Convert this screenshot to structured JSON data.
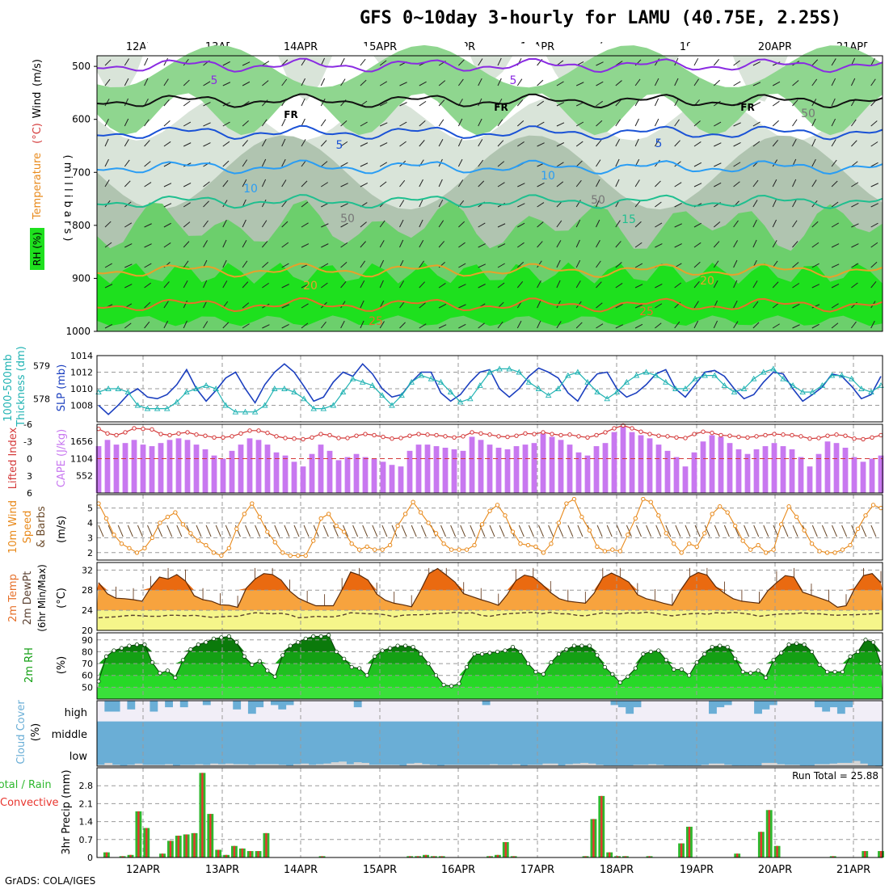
{
  "title": "GFS 0~10day 3-hourly for LAMU (40.75E, 2.25S)",
  "credit": "GrADS: COLA/IGES",
  "dates": [
    "12APR",
    "13APR",
    "14APR",
    "15APR",
    "16APR",
    "17APR",
    "18APR",
    "19APR",
    "20APR",
    "21APR"
  ],
  "colors": {
    "grid": "#9a9a9a",
    "rh_light": "#d9e4d9",
    "rh_mid": "#b0c4b0",
    "rh_green": "#6ccf6c",
    "rh_bright": "#1ee01e",
    "purple": "#8a2be2",
    "cloud_blue": "#6aaed6",
    "cloud_gray": "#d4d4d4",
    "cloud_bg": "#f1eef7",
    "precip_green": "#2eb82e",
    "precip_red": "#e8352e",
    "orange": "#e8891a",
    "cape": "#c878f0",
    "li_red": "#d43a3a"
  },
  "chart_data": [
    {
      "type": "heatmap",
      "name": "upper-air",
      "ylabel_parts": [
        "RH (%)",
        "Temperature",
        "(°C)",
        "Wind",
        "(m/s)"
      ],
      "ylabel_side": "( m i l l i b a r s )",
      "yticks": [
        500,
        600,
        700,
        800,
        900,
        1000
      ],
      "contour_labels": [
        "5",
        "5",
        "FR",
        "FR",
        "FR",
        "5",
        "5",
        "10",
        "10",
        "15",
        "20",
        "20",
        "25",
        "25",
        "50",
        "50",
        "50"
      ]
    },
    {
      "type": "line",
      "name": "thickness-slp",
      "ylabel_left": "1000-500mb Thickness (dm)",
      "ylabel_right": "SLP (mb)",
      "yticks_left": [
        578,
        579
      ],
      "yticks_right": [
        1008,
        1010,
        1012,
        1014
      ],
      "ylim_right": [
        1006,
        1014
      ],
      "slp": [
        1008,
        1006.9,
        1008,
        1009.3,
        1010,
        1009,
        1008.8,
        1009.3,
        1010.5,
        1012.3,
        1010,
        1008.5,
        1009.8,
        1011.3,
        1012,
        1010,
        1008.3,
        1010.5,
        1012,
        1013,
        1012,
        1010.3,
        1008.5,
        1009,
        1010.8,
        1012,
        1011.5,
        1013,
        1011.8,
        1010,
        1009,
        1009.3,
        1010.8,
        1012,
        1012,
        1009.5,
        1008.5,
        1009.3,
        1010.8,
        1012,
        1012.3,
        1010,
        1009,
        1010,
        1011.5,
        1012.5,
        1012,
        1011.3,
        1009.5,
        1008.5,
        1010.5,
        1011.8,
        1012,
        1010,
        1009,
        1009.5,
        1010.5,
        1011.8,
        1012.3,
        1010,
        1009,
        1010.5,
        1012,
        1012.2,
        1011.5,
        1010,
        1008.8,
        1009.3,
        1010.8,
        1012,
        1011.8,
        1010,
        1008.5,
        1009.3,
        1010.2,
        1011.8,
        1011.5,
        1010.3,
        1008.8,
        1009.3,
        1011.5
      ],
      "thickness": [
        578.2,
        578.3,
        578.3,
        578.2,
        577.8,
        577.7,
        577.7,
        577.7,
        577.9,
        578.2,
        578.3,
        578.4,
        578.3,
        577.8,
        577.6,
        577.6,
        577.6,
        577.8,
        578.3,
        578.3,
        578.2,
        578.0,
        577.7,
        577.7,
        577.8,
        578.2,
        578.6,
        578.5,
        578.4,
        578.1,
        577.8,
        578.1,
        578.5,
        578.7,
        578.6,
        578.5,
        578.2,
        577.9,
        578.0,
        578.4,
        578.8,
        578.9,
        578.9,
        578.8,
        578.5,
        578.3,
        578.1,
        578.3,
        578.7,
        578.8,
        578.5,
        578.2,
        578.0,
        578.2,
        578.5,
        578.7,
        578.8,
        578.7,
        578.5,
        578.3,
        578.3,
        578.6,
        578.7,
        578.7,
        578.4,
        578.2,
        578.3,
        578.6,
        578.8,
        578.9,
        578.6,
        578.4,
        578.2,
        578.2,
        578.4,
        578.7,
        578.7,
        578.6,
        578.3,
        578.2,
        578.4
      ]
    },
    {
      "type": "bar",
      "name": "cape-li",
      "ylabel_left": "Lifted Index",
      "ylabel_right": "CAPE (J/kg)",
      "yticks_left": [
        "-6",
        "-3",
        "0",
        "3",
        "6"
      ],
      "yticks_right": [
        552,
        1104,
        1656
      ],
      "ylim_cape": [
        0,
        2200
      ],
      "cape": [
        1500,
        1700,
        1550,
        1600,
        1700,
        1550,
        1500,
        1600,
        1700,
        1750,
        1700,
        1550,
        1400,
        1200,
        1100,
        1350,
        1550,
        1750,
        1700,
        1550,
        1300,
        1200,
        1000,
        850,
        1250,
        1550,
        1350,
        1050,
        1150,
        1250,
        1150,
        1100,
        1000,
        900,
        850,
        1350,
        1550,
        1550,
        1500,
        1450,
        1400,
        1350,
        1800,
        1700,
        1550,
        1450,
        1400,
        1500,
        1550,
        1600,
        1900,
        1800,
        1700,
        1550,
        1300,
        1200,
        1500,
        1600,
        1950,
        2150,
        1950,
        1850,
        1750,
        1550,
        1350,
        1150,
        850,
        1300,
        1650,
        1850,
        1800,
        1600,
        1400,
        1250,
        1400,
        1500,
        1600,
        1500,
        1400,
        1150,
        850,
        1250,
        1650,
        1600,
        1450,
        1150,
        1000,
        1100,
        1200
      ],
      "lifted_index": [
        -5.2,
        -4.4,
        -4.1,
        -4.6,
        -5.3,
        -5.2,
        -5.1,
        -4.3,
        -4.1,
        -4.4,
        -4.6,
        -4.2,
        -4,
        -3.7,
        -3.7,
        -3.9,
        -4.4,
        -4.9,
        -4.9,
        -4.5,
        -3.9,
        -3.6,
        -3.5,
        -3.4,
        -3.7,
        -4.3,
        -4.1,
        -3.6,
        -3.6,
        -4,
        -4.3,
        -4.1,
        -3.8,
        -3.5,
        -3.6,
        -4,
        -4.3,
        -4.2,
        -4.1,
        -3.9,
        -3.7,
        -3.9,
        -4.6,
        -4.4,
        -4.2,
        -3.9,
        -3.8,
        -4,
        -4.4,
        -4.3,
        -4.6,
        -4.3,
        -4.1,
        -4.2,
        -3.9,
        -3.7,
        -4.1,
        -4.6,
        -5.3,
        -5.8,
        -5.3,
        -4.7,
        -4.3,
        -4.0,
        -3.9,
        -3.7,
        -3.6,
        -4.3,
        -4.7,
        -4.5,
        -4.1,
        -4,
        -3.8,
        -3.7,
        -3.9,
        -4.1,
        -4.3,
        -4.2,
        -4.1,
        -3.9,
        -3.5,
        -3.6,
        -4,
        -4.2,
        -4,
        -3.5,
        -3.4,
        -3.7,
        -4.1
      ]
    },
    {
      "type": "line",
      "name": "wind10m",
      "ylabel": "10m Wind Speed & Barbs (m/s)",
      "yticks": [
        2,
        3,
        4,
        5
      ],
      "ylim": [
        1.5,
        5.9
      ],
      "speed": [
        5.3,
        4.3,
        3.2,
        2.6,
        2.3,
        2.0,
        2.3,
        3.0,
        4.0,
        4.4,
        4.7,
        3.9,
        3.3,
        2.8,
        2.5,
        2.0,
        1.8,
        2.3,
        3.6,
        4.6,
        5.3,
        4.4,
        3.4,
        2.7,
        2.0,
        1.8,
        1.8,
        1.8,
        2.8,
        4.3,
        4.6,
        3.8,
        3.4,
        2.6,
        2.2,
        2.4,
        2.2,
        2.2,
        2.5,
        3.8,
        4.6,
        5.4,
        4.7,
        4.0,
        3.3,
        2.6,
        2.2,
        2.2,
        2.2,
        2.5,
        3.9,
        4.8,
        5.2,
        4.5,
        3.4,
        2.6,
        2.5,
        2.4,
        2.0,
        2.6,
        4.0,
        5.3,
        5.6,
        4.4,
        3.5,
        2.4,
        2.1,
        2.2,
        2.1,
        3.2,
        4.3,
        5.6,
        5.4,
        4.5,
        3.3,
        2.6,
        2.0,
        2.6,
        2.4,
        3.3,
        4.6,
        5.1,
        4.7,
        3.8,
        2.8,
        2.2,
        2.5,
        2.0,
        2.2,
        3.9,
        5.1,
        4.4,
        3.5,
        2.6,
        2.1,
        2.0,
        2.0,
        2.2,
        2.5,
        3.6,
        4.5,
        5.2,
        5.0
      ]
    },
    {
      "type": "area",
      "name": "temp-dewpt",
      "ylabel": "2m Temp 2m DewPt (6hr Min/Max) (°C)",
      "yticks": [
        20,
        24,
        28,
        32
      ],
      "ylim": [
        20,
        33.5
      ],
      "temp": [
        29.5,
        27.3,
        26.4,
        26.3,
        26.1,
        25.8,
        28.5,
        30.6,
        30.2,
        31.1,
        29.8,
        26.9,
        26.1,
        25.8,
        25.1,
        25.0,
        24.6,
        28.4,
        30.2,
        31.3,
        31.1,
        30.0,
        27.8,
        26.4,
        25.6,
        24.9,
        24.9,
        24.9,
        28.1,
        31.6,
        31.0,
        30.0,
        27.2,
        26.0,
        25.4,
        25.1,
        24.7,
        27.8,
        31.3,
        32.3,
        31.0,
        29.6,
        27.3,
        26.7,
        26.1,
        25.6,
        25.0,
        27.1,
        29.9,
        31.0,
        30.6,
        29.2,
        27.5,
        26.3,
        25.8,
        25.6,
        25.4,
        27.4,
        30.5,
        31.4,
        30.6,
        29.6,
        27.1,
        26.3,
        25.9,
        25.4,
        25.0,
        28.1,
        30.6,
        31.5,
        31.0,
        28.7,
        27.4,
        26.3,
        25.8,
        25.6,
        25.4,
        27.9,
        29.5,
        30.9,
        30.6,
        27.6,
        27.0,
        26.4,
        25.8,
        24.6,
        24.9,
        28.4,
        30.9,
        31.3,
        29.5
      ],
      "tmax": [
        null,
        null,
        null,
        null,
        null,
        null,
        null,
        null,
        null,
        31.3,
        null,
        null,
        null,
        null,
        null,
        null,
        null,
        null,
        31.0,
        null,
        null,
        null,
        null,
        null,
        null,
        null,
        null,
        null,
        30.9,
        null,
        null,
        null,
        null,
        null,
        null,
        null,
        null,
        null,
        31.2,
        null,
        null,
        null,
        null,
        null,
        null,
        null,
        null,
        null,
        31.5,
        null,
        null,
        null,
        null,
        null,
        null,
        null,
        null,
        null,
        31.0,
        null,
        null,
        null,
        null,
        null,
        null,
        null,
        null,
        null,
        31.5,
        null,
        null,
        null,
        null,
        null,
        null,
        null,
        null,
        null,
        30.9,
        null,
        null,
        null,
        null,
        null,
        null,
        null,
        null,
        null,
        31.3,
        null,
        null
      ],
      "dewpt": [
        22.5,
        22.6,
        22.7,
        22.9,
        23.0,
        22.9,
        22.8,
        22.8,
        23.0,
        23.0,
        22.9,
        23.0,
        22.8,
        22.6,
        22.7,
        22.8,
        22.8,
        23.2,
        23.5,
        23.4,
        23.3,
        23.4,
        23.1,
        22.5,
        22.6,
        22.8,
        22.7,
        22.7,
        23.0,
        23.5,
        23.4,
        23.3,
        23.3,
        23.1,
        22.7,
        23.0,
        23.1,
        23.1,
        23.2,
        23.4,
        23.4,
        23.6,
        23.4,
        23.5,
        23.0,
        22.8,
        23.1,
        23.3,
        23.4,
        23.5,
        23.6,
        23.3,
        23.6,
        23.3,
        23.3,
        23.0,
        22.9,
        23.2,
        23.5,
        23.3,
        23.3,
        23.5,
        23.4,
        23.6,
        23.4,
        23.1,
        22.9,
        23.1,
        23.3,
        23.4,
        23.2,
        23.5,
        23.4,
        23.6,
        23.4,
        23.2,
        22.8,
        23.0,
        23.2,
        23.3,
        23.3,
        23.5,
        23.3,
        23.3,
        23.1,
        23.0,
        23.1,
        23.1,
        23.2,
        23.3,
        23.4
      ]
    },
    {
      "type": "area",
      "name": "rh2m",
      "ylabel": "2m RH (%)",
      "yticks": [
        50,
        60,
        70,
        80,
        90
      ],
      "ylim": [
        40,
        96
      ],
      "rh": [
        55,
        76,
        81,
        83,
        85,
        86,
        86,
        71,
        62,
        64,
        58,
        73,
        82,
        86,
        88,
        91,
        92,
        93,
        88,
        76,
        69,
        72,
        64,
        59,
        77,
        85,
        88,
        91,
        93,
        93,
        94,
        80,
        74,
        67,
        66,
        60,
        76,
        81,
        83,
        85,
        85,
        84,
        78,
        70,
        60,
        52,
        51,
        53,
        67,
        78,
        78,
        79,
        80,
        81,
        84,
        80,
        70,
        63,
        61,
        71,
        78,
        82,
        85,
        85,
        85,
        77,
        67,
        61,
        54,
        59,
        66,
        78,
        80,
        81,
        73,
        65,
        65,
        60,
        71,
        78,
        84,
        85,
        84,
        74,
        63,
        62,
        64,
        58,
        73,
        79,
        86,
        87,
        86,
        80,
        69,
        63,
        63,
        63,
        76,
        80,
        90,
        88,
        70
      ]
    },
    {
      "type": "bar",
      "name": "cloud-cover",
      "ylabel": "Cloud Cover (%)",
      "levels": [
        "high",
        "middle",
        "low"
      ],
      "high": [
        0,
        50,
        50,
        0,
        40,
        0,
        0,
        50,
        0,
        30,
        0,
        30,
        0,
        0,
        20,
        0,
        0,
        0,
        40,
        0,
        60,
        30,
        0,
        20,
        40,
        20,
        0,
        0,
        0,
        0,
        0,
        0,
        0,
        0,
        30,
        0,
        0,
        0,
        0,
        0,
        0,
        0,
        0,
        0,
        0,
        0,
        0,
        0,
        0,
        0,
        0,
        20,
        0,
        0,
        0,
        0,
        0,
        0,
        0,
        0,
        0,
        0,
        0,
        0,
        0,
        0,
        0,
        0,
        20,
        30,
        60,
        30,
        0,
        0,
        0,
        0,
        0,
        0,
        0,
        0,
        0,
        60,
        30,
        20,
        0,
        0,
        0,
        60,
        40,
        20,
        0,
        0,
        0,
        0,
        0,
        30,
        50,
        30,
        60,
        30,
        0,
        0,
        0,
        0,
        0,
        0
      ],
      "middle": [
        100,
        100,
        100,
        100,
        100,
        100,
        100,
        100,
        100,
        100,
        100,
        100,
        100,
        100,
        100,
        100,
        100,
        100,
        100,
        100,
        100,
        100,
        100,
        100,
        100,
        100,
        100,
        100,
        100,
        100,
        100,
        100,
        100,
        100,
        100,
        100,
        100,
        100,
        100,
        100,
        100,
        100,
        100,
        100,
        100,
        100,
        100,
        100,
        100,
        100,
        100,
        100,
        100,
        100,
        100,
        100,
        100,
        100,
        100,
        100,
        100,
        100,
        100,
        100,
        100,
        100,
        100,
        100,
        100,
        100,
        100,
        100,
        100,
        100,
        100,
        100,
        100,
        100,
        100,
        100,
        100,
        100,
        100,
        100,
        100,
        100,
        100,
        100,
        100,
        100,
        100,
        100,
        100,
        100,
        100,
        100,
        100,
        100,
        100,
        100,
        100,
        100,
        100,
        100
      ],
      "low": [
        10,
        25,
        10,
        5,
        10,
        20,
        10,
        10,
        10,
        15,
        5,
        10,
        10,
        15,
        10,
        20,
        15,
        20,
        15,
        15,
        10,
        15,
        15,
        15,
        10,
        5,
        15,
        20,
        10,
        15,
        20,
        30,
        35,
        15,
        30,
        25,
        10,
        10,
        10,
        10,
        5,
        20,
        25,
        15,
        10,
        5,
        10,
        10,
        10,
        10,
        10,
        10,
        15,
        10,
        10,
        15,
        5,
        10,
        10,
        20,
        20,
        5,
        15,
        20,
        25,
        20,
        10,
        5,
        5,
        5,
        5,
        10,
        10,
        15,
        10,
        5,
        5,
        5,
        5,
        5,
        10,
        20,
        20,
        10,
        5,
        5,
        5,
        5,
        25,
        25,
        15,
        10,
        10,
        5,
        5,
        15,
        15,
        20,
        25,
        25,
        40,
        20,
        5
      ]
    },
    {
      "type": "bar",
      "name": "precip",
      "ylabel": "3hr Precip (mm)",
      "legend": [
        "Total / Rain",
        "Convective"
      ],
      "run_total_label": "Run Total = 25.88",
      "yticks": [
        0,
        0.7,
        1.4,
        2.1,
        2.8
      ],
      "ylim": [
        0,
        3.5
      ],
      "total": [
        0,
        0.2,
        0,
        0.05,
        0.1,
        1.8,
        1.15,
        0,
        0.15,
        0.65,
        0.85,
        0.9,
        0.95,
        3.3,
        1.7,
        0.3,
        0.1,
        0.45,
        0.35,
        0.25,
        0.25,
        0.95,
        0,
        0,
        0,
        0,
        0,
        0,
        0.05,
        0,
        0,
        0,
        0,
        0,
        0,
        0,
        0,
        0,
        0,
        0.05,
        0.05,
        0.1,
        0.05,
        0.05,
        0,
        0,
        0,
        0,
        0,
        0.05,
        0.1,
        0.6,
        0.05,
        0,
        0,
        0,
        0,
        0,
        0,
        0,
        0,
        0.05,
        1.5,
        2.4,
        0.2,
        0.05,
        0.05,
        0,
        0,
        0.05,
        0,
        0,
        0,
        0.55,
        1.2,
        0,
        0,
        0,
        0,
        0,
        0.15,
        0,
        0,
        1.0,
        1.85,
        0.45,
        0,
        0,
        0,
        0,
        0,
        0,
        0.05,
        0,
        0,
        0,
        0.25,
        0,
        0.25
      ]
    }
  ]
}
